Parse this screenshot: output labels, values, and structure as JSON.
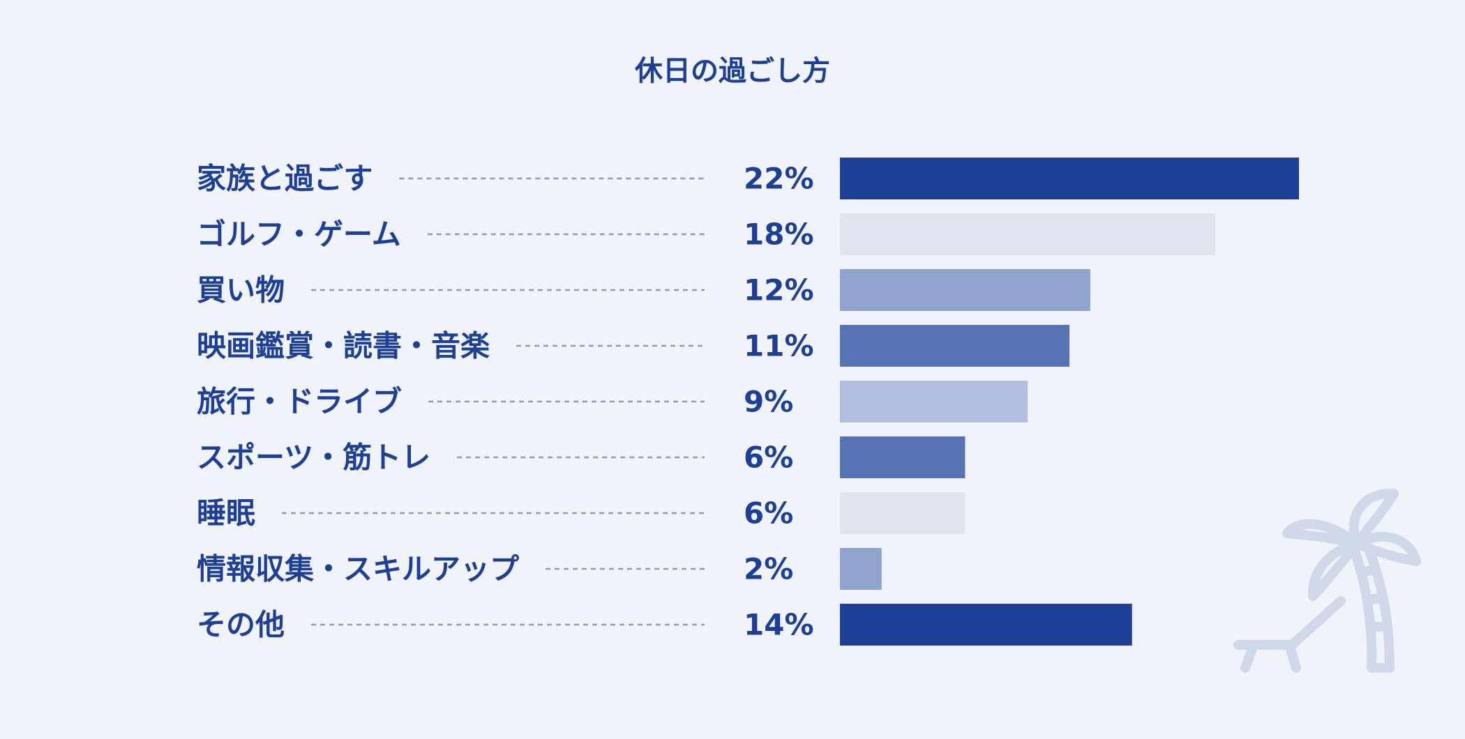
{
  "chart_data": {
    "type": "bar",
    "orientation": "horizontal",
    "title": "休日の過ごし方",
    "categories": [
      "家族と過ごす",
      "ゴルフ・ゲーム",
      "買い物",
      "映画鑑賞・読書・音楽",
      "旅行・ドライブ",
      "スポーツ・筋トレ",
      "睡眠",
      "情報収集・スキルアップ",
      "その他"
    ],
    "values": [
      22,
      18,
      12,
      11,
      9,
      6,
      6,
      2,
      14
    ],
    "value_labels": [
      "22%",
      "18%",
      "12%",
      "11%",
      "9%",
      "6%",
      "6%",
      "2%",
      "14%"
    ],
    "unit": "%",
    "bar_colors": [
      "#1d3f96",
      "#dfe4ef",
      "#91a4d0",
      "#5673b5",
      "#b1bedf",
      "#5673b5",
      "#dfe4ef",
      "#91a4d0",
      "#1d3f96"
    ],
    "xlim": [
      0,
      22
    ],
    "grid": false,
    "legend": "none"
  },
  "colors": {
    "background": "#f1f3fa",
    "text": "#1d3f96",
    "leader": "#8a9cc4",
    "decoration": "#d0d9ea"
  },
  "decoration": {
    "icon": "palm-tree-beach-chair-icon"
  }
}
